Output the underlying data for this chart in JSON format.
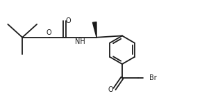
{
  "bg_color": "#ffffff",
  "line_color": "#1a1a1a",
  "line_width": 1.3,
  "wedge_color": "#1a1a1a",
  "text_color": "#1a1a1a",
  "font_size": 7.0,
  "fig_width": 2.91,
  "fig_height": 1.38,
  "dpi": 100,
  "xlim": [
    0,
    10
  ],
  "ylim": [
    0,
    4.75
  ]
}
